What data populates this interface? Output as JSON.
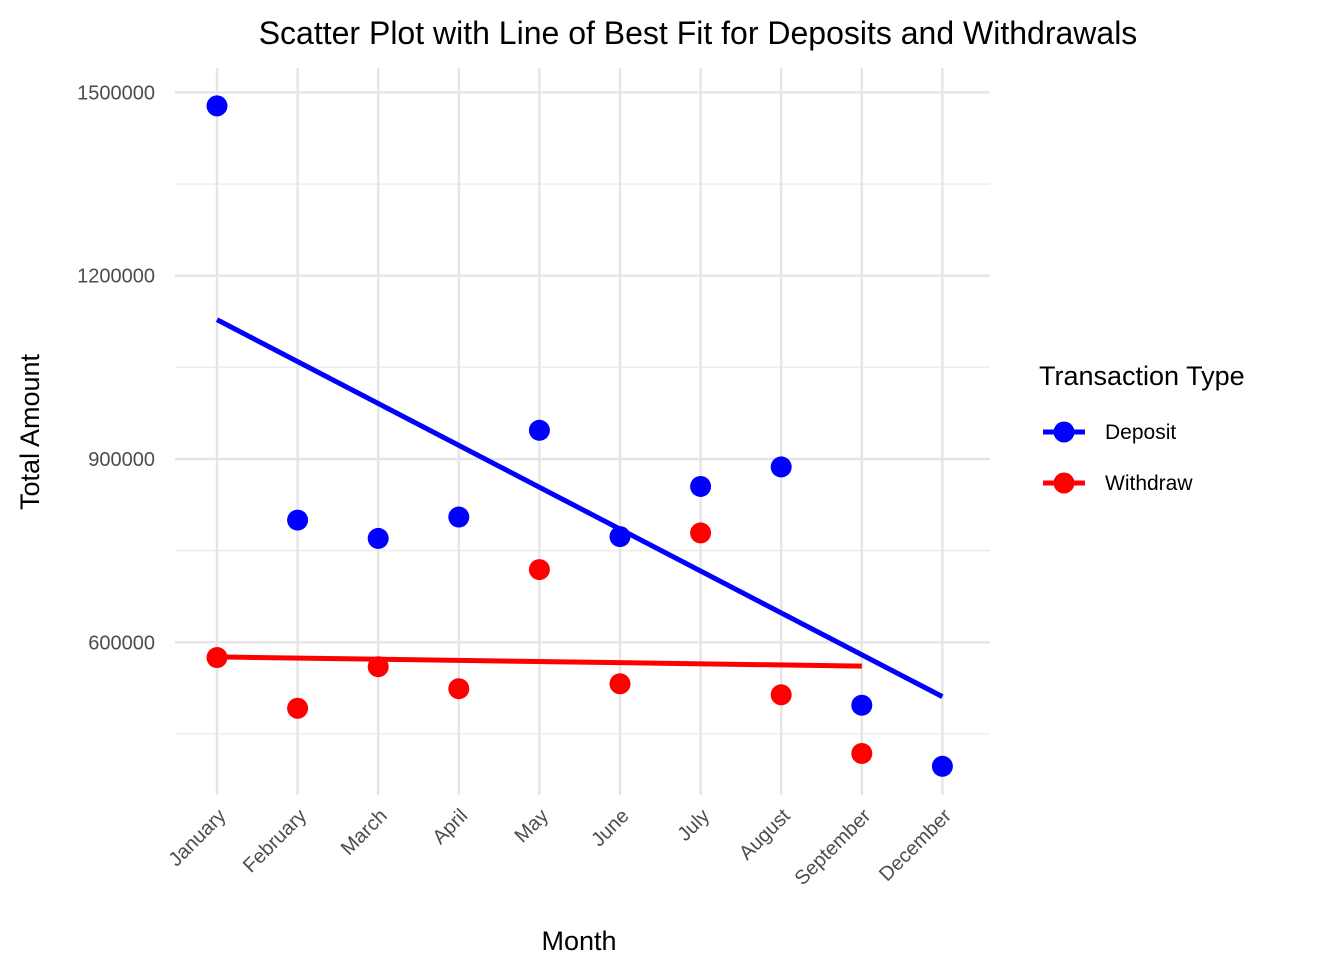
{
  "chart_data": {
    "type": "scatter",
    "title": "Scatter Plot with Line of Best Fit for Deposits and Withdrawals",
    "xlabel": "Month",
    "ylabel": "Total Amount",
    "categories": [
      "January",
      "February",
      "March",
      "April",
      "May",
      "June",
      "July",
      "August",
      "September",
      "December"
    ],
    "y_ticks": [
      600000,
      900000,
      1200000,
      1500000
    ],
    "ylim": [
      350000,
      1540000
    ],
    "grid": true,
    "legend": {
      "title": "Transaction Type",
      "position": "right",
      "entries": [
        "Deposit",
        "Withdraw"
      ]
    },
    "series": [
      {
        "name": "Deposit",
        "color": "#0000ff",
        "values": [
          1478000,
          800000,
          770000,
          805000,
          947000,
          773000,
          855000,
          887000,
          497000,
          397000
        ],
        "fit": {
          "from": "January",
          "to": "December",
          "start": 1128000,
          "end": 511000
        }
      },
      {
        "name": "Withdraw",
        "color": "#ff0000",
        "values": [
          575000,
          492000,
          560000,
          524000,
          719000,
          532000,
          779000,
          514000,
          418000,
          null
        ],
        "fit": {
          "from": "January",
          "to": "September",
          "start": 576000,
          "end": 561000
        }
      }
    ]
  }
}
